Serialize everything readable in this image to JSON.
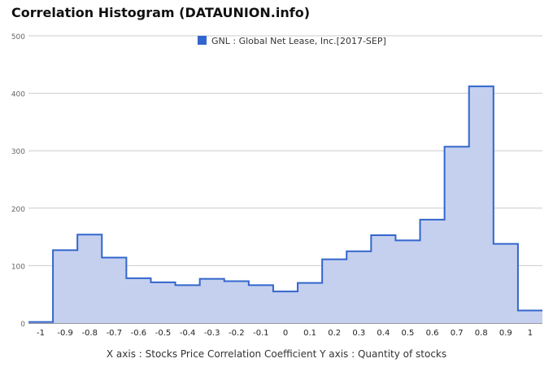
{
  "title": "Correlation Histogram (DATAUNION.info)",
  "caption": "X axis : Stocks Price Correlation Coefficient  Y axis : Quantity of stocks",
  "colors": {
    "line": "#3366cc",
    "fill": "#c5d0ef",
    "grid": "#cccccc",
    "axis": "#333333"
  },
  "chart_data": {
    "type": "area",
    "style": "step",
    "title": "Correlation Histogram (DATAUNION.info)",
    "xlabel": "X axis : Stocks Price Correlation Coefficient",
    "ylabel": "Y axis : Quantity of stocks",
    "xlim": [
      -1.05,
      1.05
    ],
    "ylim": [
      0,
      500
    ],
    "grid": true,
    "legend_position": "top-center",
    "x_ticks": [
      -1,
      -0.9,
      -0.8,
      -0.7,
      -0.6,
      -0.5,
      -0.4,
      -0.3,
      -0.2,
      -0.1,
      0,
      0.1,
      0.2,
      0.3,
      0.4,
      0.5,
      0.6,
      0.7,
      0.8,
      0.9,
      1
    ],
    "x_tick_labels": [
      "-1",
      "-0.9",
      "-0.8",
      "-0.7",
      "-0.6",
      "-0.5",
      "-0.4",
      "-0.3",
      "-0.2",
      "-0.1",
      "0",
      "0.1",
      "0.2",
      "0.3",
      "0.4",
      "0.5",
      "0.6",
      "0.7",
      "0.8",
      "0.9",
      "1"
    ],
    "y_ticks": [
      0,
      100,
      200,
      300,
      400,
      500
    ],
    "y_tick_labels": [
      "0",
      "100",
      "200",
      "300",
      "400",
      "500"
    ],
    "series": [
      {
        "name": "GNL : Global Net Lease, Inc.[2017-SEP]",
        "x": [
          -1,
          -0.9,
          -0.8,
          -0.7,
          -0.6,
          -0.5,
          -0.4,
          -0.3,
          -0.2,
          -0.1,
          0,
          0.1,
          0.2,
          0.3,
          0.4,
          0.5,
          0.6,
          0.7,
          0.8,
          0.9,
          1
        ],
        "values": [
          2,
          127,
          154,
          114,
          78,
          71,
          66,
          77,
          73,
          66,
          55,
          70,
          111,
          125,
          153,
          144,
          180,
          307,
          412,
          138,
          22
        ]
      }
    ]
  }
}
